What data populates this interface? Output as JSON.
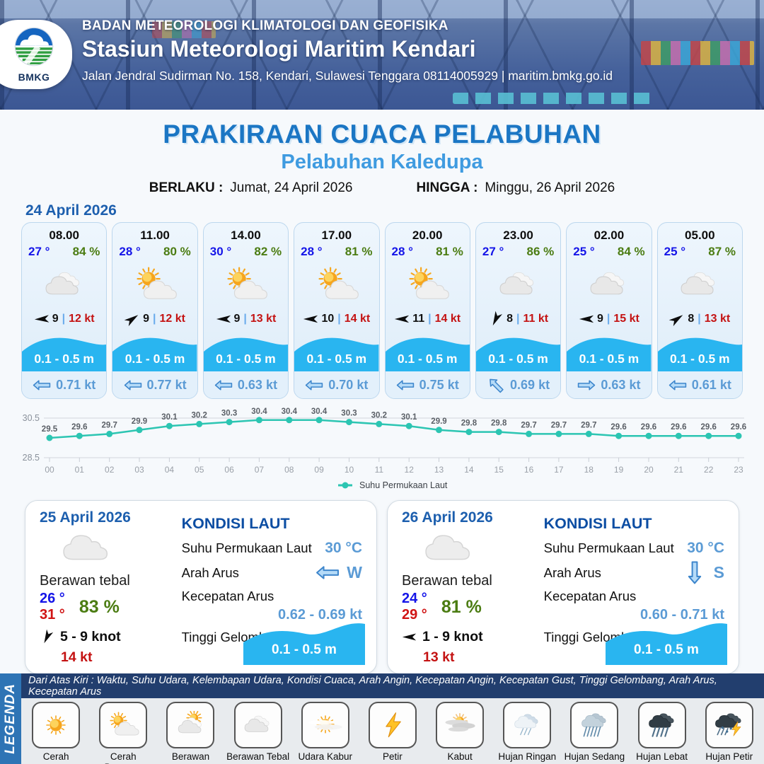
{
  "header": {
    "logo_text": "BMKG",
    "org": "BADAN METEOROLOGI KLIMATOLOGI DAN GEOFISIKA",
    "station": "Stasiun Meteorologi Maritim Kendari",
    "address": "Jalan Jendral Sudirman No. 158, Kendari, Sulawesi Tenggara  08114005929 | maritim.bmkg.go.id"
  },
  "title": "PRAKIRAAN CUACA PELABUHAN",
  "subtitle": "Pelabuhan Kaledupa",
  "validity": {
    "berlaku_label": "BERLAKU :",
    "berlaku_value": "Jumat, 24 April 2026",
    "hingga_label": "HINGGA :",
    "hingga_value": "Minggu, 26 April 2026"
  },
  "day1": {
    "date": "24 April 2026",
    "cards": [
      {
        "time": "08.00",
        "temp": "27 °",
        "humidity": "84 %",
        "icon": "cloud2",
        "wind_deg": 177,
        "wind_speed": "9",
        "gust": "12 kt",
        "wave": "0.1 - 0.5 m",
        "current_deg": 0,
        "current": "0.71 kt"
      },
      {
        "time": "11.00",
        "temp": "28 °",
        "humidity": "80 %",
        "icon": "suncloud",
        "wind_deg": -35,
        "wind_speed": "9",
        "gust": "12 kt",
        "wave": "0.1 - 0.5 m",
        "current_deg": 0,
        "current": "0.77 kt"
      },
      {
        "time": "14.00",
        "temp": "30 °",
        "humidity": "82 %",
        "icon": "suncloud",
        "wind_deg": 180,
        "wind_speed": "9",
        "gust": "13 kt",
        "wave": "0.1 - 0.5 m",
        "current_deg": 0,
        "current": "0.63 kt"
      },
      {
        "time": "17.00",
        "temp": "28 °",
        "humidity": "81 %",
        "icon": "suncloud",
        "wind_deg": 180,
        "wind_speed": "10",
        "gust": "14 kt",
        "wave": "0.1 - 0.5 m",
        "current_deg": 0,
        "current": "0.70 kt"
      },
      {
        "time": "20.00",
        "temp": "28 °",
        "humidity": "81 %",
        "icon": "suncloud",
        "wind_deg": 180,
        "wind_speed": "11",
        "gust": "14 kt",
        "wave": "0.1 - 0.5 m",
        "current_deg": 0,
        "current": "0.75 kt"
      },
      {
        "time": "23.00",
        "temp": "27 °",
        "humidity": "86 %",
        "icon": "cloud2",
        "wind_deg": 115,
        "wind_speed": "8",
        "gust": "11 kt",
        "wave": "0.1 - 0.5 m",
        "current_deg": 45,
        "current": "0.69 kt"
      },
      {
        "time": "02.00",
        "temp": "25 °",
        "humidity": "84 %",
        "icon": "cloud2",
        "wind_deg": 180,
        "wind_speed": "9",
        "gust": "15 kt",
        "wave": "0.1 - 0.5 m",
        "current_deg": 180,
        "current": "0.63 kt"
      },
      {
        "time": "05.00",
        "temp": "25 °",
        "humidity": "87 %",
        "icon": "cloud2",
        "wind_deg": -35,
        "wind_speed": "8",
        "gust": "13 kt",
        "wave": "0.1 - 0.5 m",
        "current_deg": 0,
        "current": "0.61 kt"
      }
    ]
  },
  "chart_data": {
    "type": "line",
    "x": [
      "00",
      "01",
      "02",
      "03",
      "04",
      "05",
      "06",
      "07",
      "08",
      "09",
      "10",
      "11",
      "12",
      "13",
      "14",
      "15",
      "16",
      "17",
      "18",
      "19",
      "20",
      "21",
      "22",
      "23"
    ],
    "series": [
      {
        "name": "Suhu Permukaan Laut",
        "values": [
          29.5,
          29.6,
          29.7,
          29.9,
          30.1,
          30.2,
          30.3,
          30.4,
          30.4,
          30.4,
          30.3,
          30.2,
          30.1,
          29.9,
          29.8,
          29.8,
          29.7,
          29.7,
          29.7,
          29.6,
          29.6,
          29.6,
          29.6,
          29.6
        ]
      }
    ],
    "ylim": [
      28.5,
      30.5
    ],
    "yticks": [
      28.5,
      30.5
    ],
    "xlabel": "",
    "ylabel": "",
    "grid": true,
    "legend_position": "bottom",
    "line_color": "#2cc5b2"
  },
  "panels": [
    {
      "date": "25 April 2026",
      "icon": "cloud",
      "condition": "Berawan tebal",
      "temp_min": "26 °",
      "temp_max": "31 °",
      "humidity": "83 %",
      "wind_dir_deg": 115,
      "wind_range": "5  - 9 knot",
      "gust": "14 kt",
      "sea": {
        "title": "KONDISI LAUT",
        "labels": {
          "sst": "Suhu Permukaan Laut",
          "arah": "Arah Arus",
          "kecepatan": "Kecepatan Arus",
          "tinggi": "Tinggi Gelombang"
        },
        "sst_value": "30 °C",
        "arah_deg": 0,
        "arah_letter": "W",
        "kecepatan_value": "0.62 - 0.69 kt",
        "tinggi_value": "0.1 - 0.5 m"
      }
    },
    {
      "date": "26 April 2026",
      "icon": "cloud",
      "condition": "Berawan tebal",
      "temp_min": "24 °",
      "temp_max": "29 °",
      "humidity": "81 %",
      "wind_dir_deg": 180,
      "wind_range": "1  - 9 knot",
      "gust": "13 kt",
      "sea": {
        "title": "KONDISI LAUT",
        "labels": {
          "sst": "Suhu Permukaan Laut",
          "arah": "Arah Arus",
          "kecepatan": "Kecepatan Arus",
          "tinggi": "Tinggi Gelombang"
        },
        "sst_value": "30 °C",
        "arah_deg": -90,
        "arah_letter": "S",
        "kecepatan_value": "0.60 - 0.71 kt",
        "tinggi_value": "0.1 - 0.5 m"
      }
    }
  ],
  "legend": {
    "vertical_label": "LEGENDA",
    "description": "Dari Atas Kiri : Waktu, Suhu Udara, Kelembapan Udara, Kondisi Cuaca, Arah Angin, Kecepatan Angin, Kecepatan Gust, Tinggi Gelombang, Arah Arus, Kecepatan Arus",
    "items": [
      {
        "label": "Cerah",
        "icon": "sun"
      },
      {
        "label": "Cerah Berawan",
        "icon": "suncloud"
      },
      {
        "label": "Berawan",
        "icon": "berawan"
      },
      {
        "label": "Berawan Tebal",
        "icon": "cloud2"
      },
      {
        "label": "Udara Kabur",
        "icon": "haze"
      },
      {
        "label": "Petir",
        "icon": "bolt"
      },
      {
        "label": "Kabut",
        "icon": "fog"
      },
      {
        "label": "Hujan Ringan",
        "icon": "rain-light"
      },
      {
        "label": "Hujan Sedang",
        "icon": "rain-med"
      },
      {
        "label": "Hujan Lebat",
        "icon": "rain-heavy"
      },
      {
        "label": "Hujan Petir",
        "icon": "rain-thunder"
      }
    ]
  },
  "colors": {
    "title_blue": "#1b76c4",
    "subtitle_blue": "#3f9be0",
    "temp_blue": "#1414e8",
    "humidity_green": "#4b7c12",
    "gust_red": "#c41212",
    "wave_band_blue": "#29b5f0",
    "current_text_blue": "#5b9bd5",
    "chart_line_teal": "#2cc5b2",
    "legend_bar_navy": "#223e6e",
    "legend_strip_blue": "#2e74b5"
  }
}
